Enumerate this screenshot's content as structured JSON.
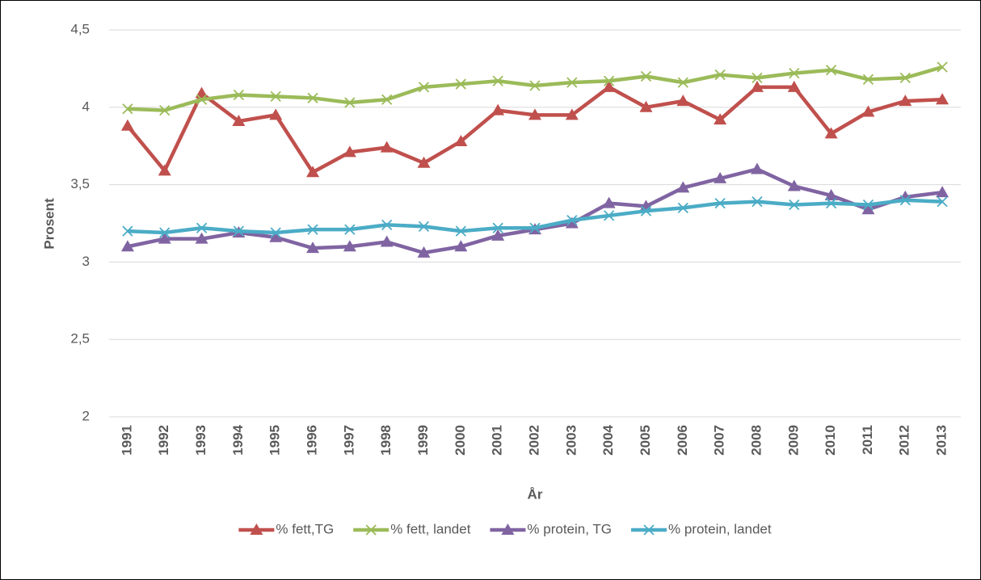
{
  "chart_data": {
    "type": "line",
    "y_label": "Prosent",
    "x_label": "År",
    "categories": [
      "1991",
      "1992",
      "1993",
      "1994",
      "1995",
      "1996",
      "1997",
      "1998",
      "1999",
      "2000",
      "2001",
      "2002",
      "2003",
      "2004",
      "2005",
      "2006",
      "2007",
      "2008",
      "2009",
      "2010",
      "2011",
      "2012",
      "2013"
    ],
    "series": [
      {
        "name": "% fett,TG",
        "color": "#c0504d",
        "marker": "triangle",
        "values": [
          3.88,
          3.59,
          4.09,
          3.91,
          3.95,
          3.58,
          3.71,
          3.74,
          3.64,
          3.78,
          3.98,
          3.95,
          3.95,
          4.13,
          4.0,
          4.04,
          3.92,
          4.13,
          4.13,
          3.83,
          3.97,
          4.04,
          4.05
        ]
      },
      {
        "name": "% fett, landet",
        "color": "#9bbb59",
        "marker": "x",
        "values": [
          3.99,
          3.98,
          4.05,
          4.08,
          4.07,
          4.06,
          4.03,
          4.05,
          4.13,
          4.15,
          4.17,
          4.14,
          4.16,
          4.17,
          4.2,
          4.16,
          4.21,
          4.19,
          4.22,
          4.24,
          4.18,
          4.19,
          4.26
        ]
      },
      {
        "name": "% protein, TG",
        "color": "#8064a2",
        "marker": "triangle",
        "values": [
          3.1,
          3.15,
          3.15,
          3.19,
          3.16,
          3.09,
          3.1,
          3.13,
          3.06,
          3.1,
          3.17,
          3.21,
          3.25,
          3.38,
          3.36,
          3.48,
          3.54,
          3.6,
          3.49,
          3.43,
          3.34,
          3.42,
          3.45
        ]
      },
      {
        "name": "% protein, landet",
        "color": "#4bacc6",
        "marker": "x",
        "values": [
          3.2,
          3.19,
          3.22,
          3.2,
          3.19,
          3.21,
          3.21,
          3.24,
          3.23,
          3.2,
          3.22,
          3.22,
          3.27,
          3.3,
          3.33,
          3.35,
          3.38,
          3.39,
          3.37,
          3.38,
          3.37,
          3.4,
          3.39
        ]
      }
    ],
    "ylim": [
      2,
      4.5
    ],
    "yticks": [
      2,
      {
        "value": 2.5,
        "label": "2,5"
      },
      3,
      {
        "value": 3.5,
        "label": "3,5"
      },
      4,
      {
        "value": 4.5,
        "label": "4,5"
      }
    ],
    "grid": true,
    "legend": "bottom"
  }
}
